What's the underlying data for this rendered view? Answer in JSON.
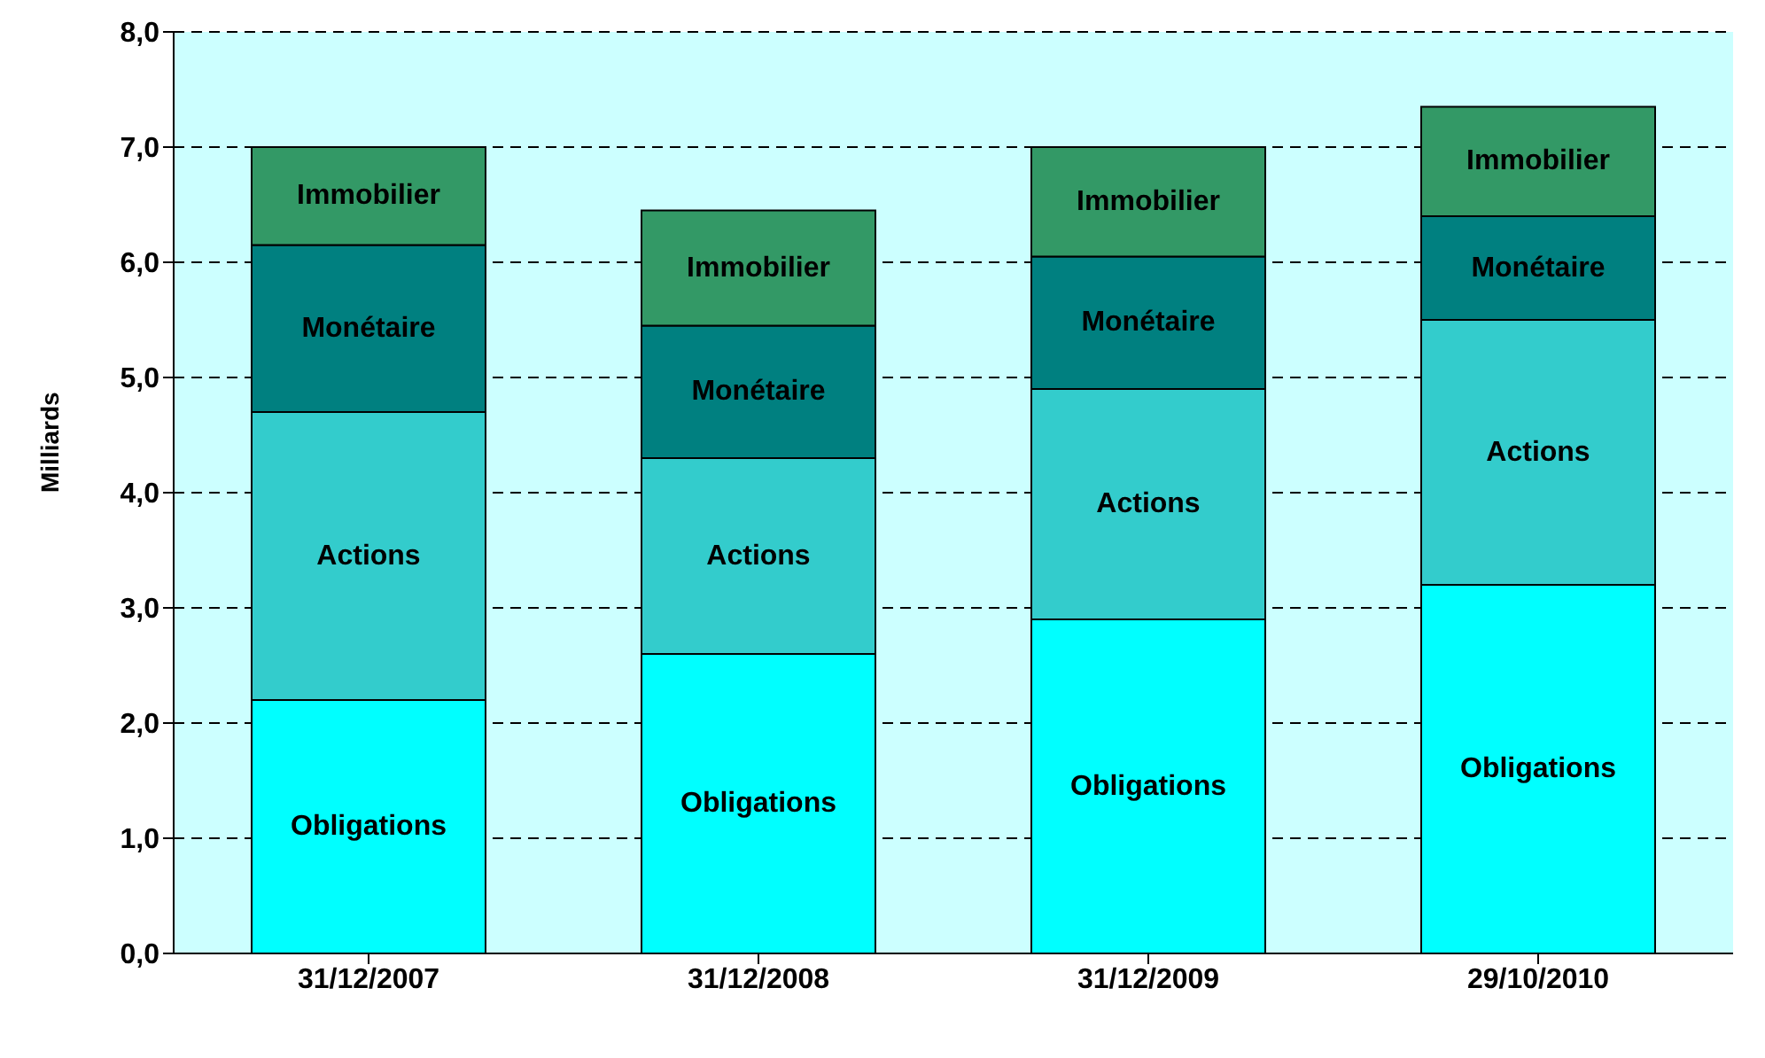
{
  "chart_data": {
    "type": "bar",
    "stacked": true,
    "ylabel": "Milliards",
    "categories": [
      "31/12/2007",
      "31/12/2008",
      "31/12/2009",
      "29/10/2010"
    ],
    "series": [
      {
        "name": "Obligations",
        "color": "#00ffff",
        "values": [
          2.2,
          2.6,
          2.9,
          3.2
        ]
      },
      {
        "name": "Actions",
        "color": "#33cccc",
        "values": [
          2.5,
          1.7,
          2.0,
          2.3
        ]
      },
      {
        "name": "Monétaire",
        "color": "#008080",
        "values": [
          1.45,
          1.15,
          1.15,
          0.9
        ]
      },
      {
        "name": "Immobilier",
        "color": "#339966",
        "values": [
          0.85,
          1.0,
          0.95,
          0.95
        ]
      }
    ],
    "ylim": [
      0,
      8
    ],
    "yticks": [
      {
        "value": 0,
        "label": "0,0"
      },
      {
        "value": 1,
        "label": "1,0"
      },
      {
        "value": 2,
        "label": "2,0"
      },
      {
        "value": 3,
        "label": "3,0"
      },
      {
        "value": 4,
        "label": "4,0"
      },
      {
        "value": 5,
        "label": "5,0"
      },
      {
        "value": 6,
        "label": "6,0"
      },
      {
        "value": 7,
        "label": "7,0"
      },
      {
        "value": 8,
        "label": "8,0"
      }
    ],
    "grid": "y",
    "legend": false
  }
}
